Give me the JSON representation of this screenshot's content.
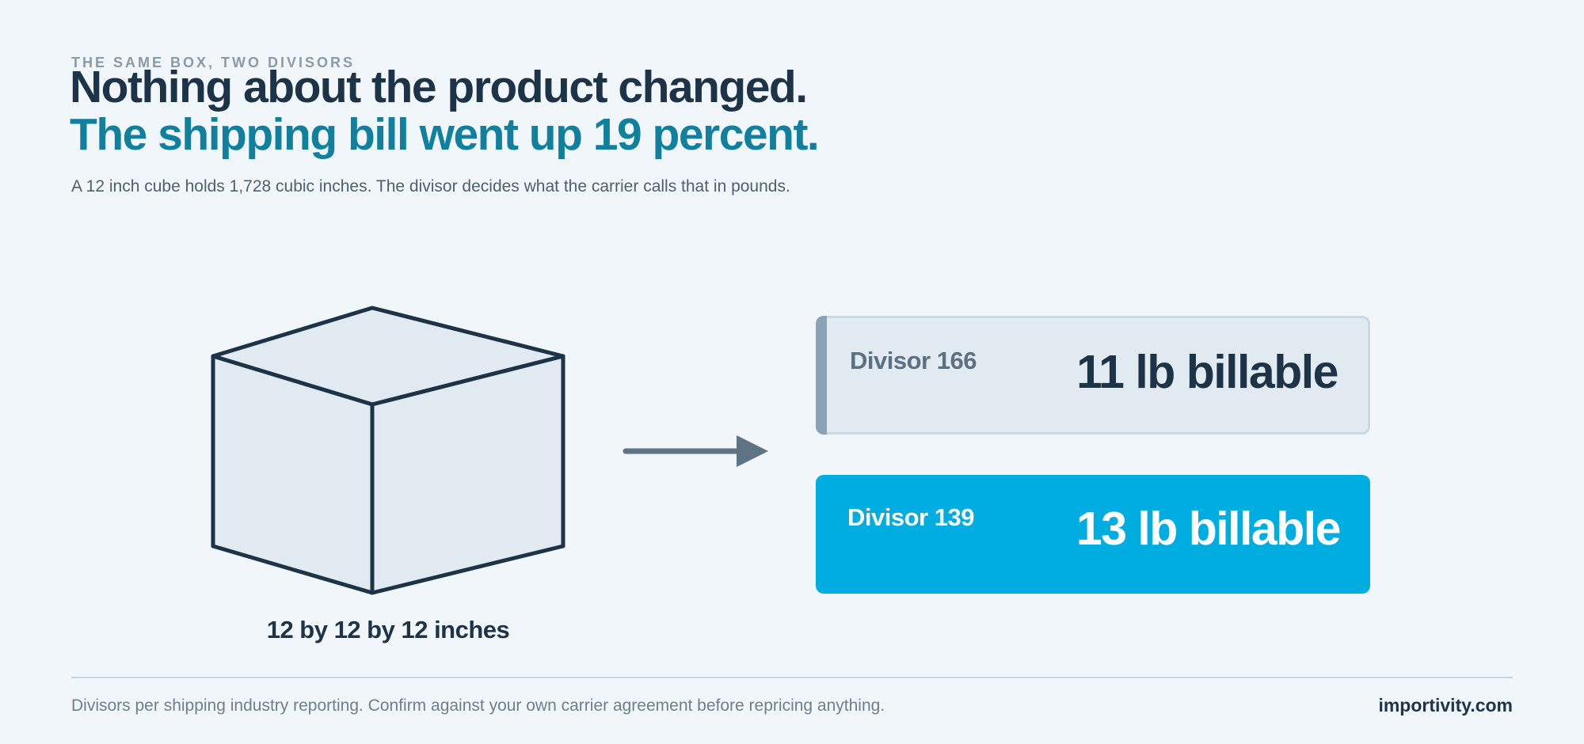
{
  "header": {
    "eyebrow": "THE SAME BOX, TWO DIVISORS",
    "headline_line1": "Nothing about the product changed.",
    "headline_line2": "The shipping bill went up 19 percent.",
    "subtitle": "A 12 inch cube holds 1,728 cubic inches. The divisor decides what the carrier calls that in pounds."
  },
  "diagram": {
    "cube_label": "12 by 12 by 12 inches",
    "cards": [
      {
        "label": "Divisor 166",
        "value": "11 lb billable"
      },
      {
        "label": "Divisor 139",
        "value": "13 lb billable"
      }
    ]
  },
  "footer": {
    "footnote": "Divisors per shipping industry reporting. Confirm against your own carrier agreement before repricing anything.",
    "brand": "importivity.com"
  },
  "colors": {
    "background": "#f0f6fa",
    "navy": "#1d3348",
    "teal": "#11809e",
    "cyan": "#00ade0",
    "muted_card": "#e1eaf1"
  }
}
